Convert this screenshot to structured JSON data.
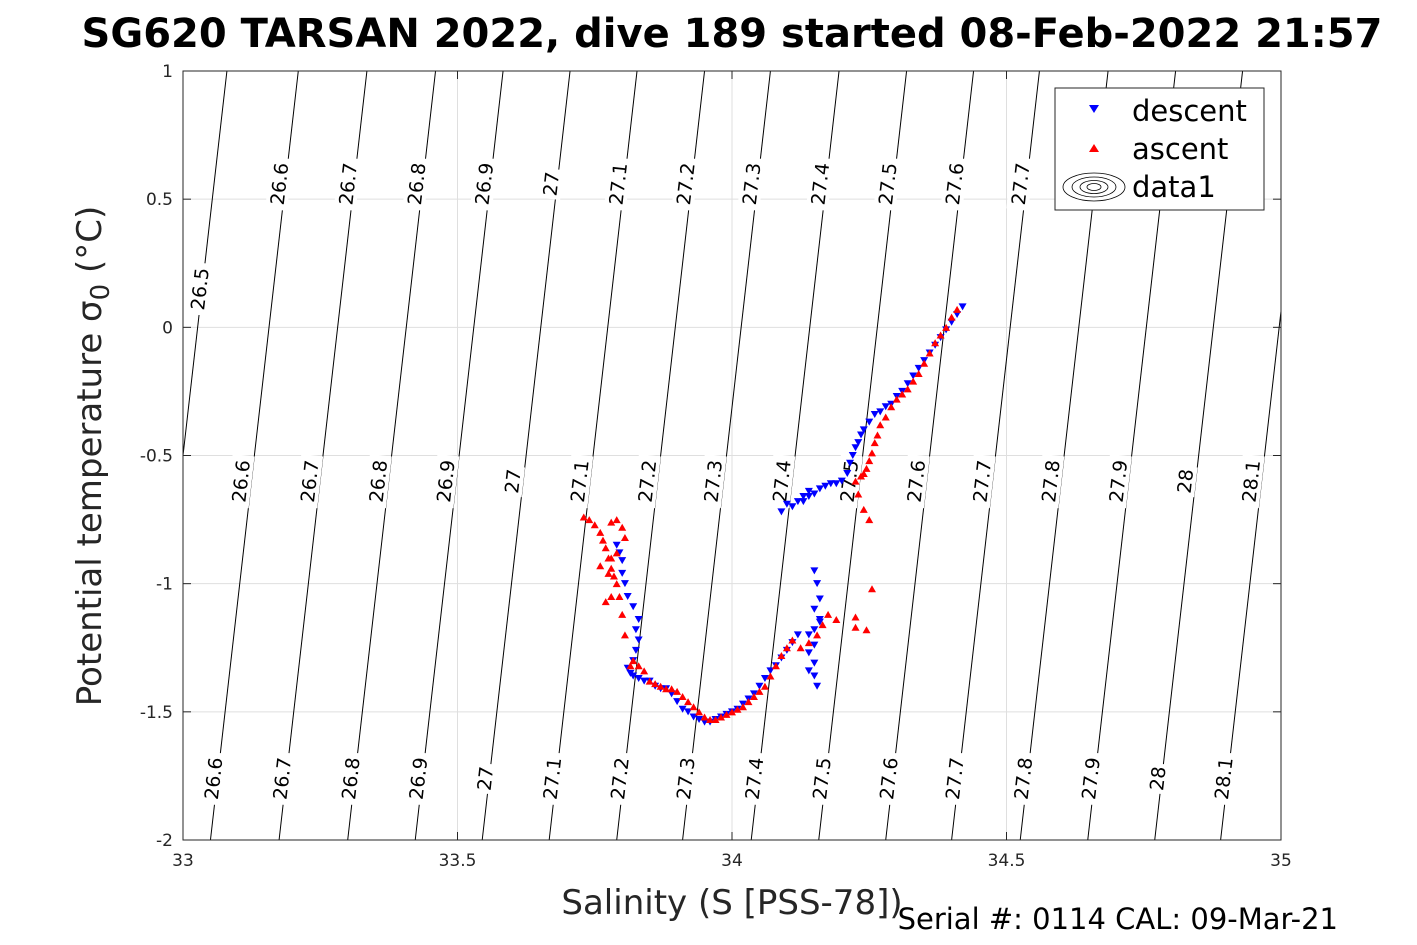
{
  "chart_data": {
    "type": "scatter",
    "title": "SG620 TARSAN 2022, dive 189 started 08-Feb-2022 21:57",
    "xlabel": "Salinity (S [PSS-78])",
    "ylabel_main": "Potential temperature ",
    "ylabel_sigma": "σ",
    "ylabel_sub": "0",
    "ylabel_units": " (°C)",
    "footer": "Serial #: 0114  CAL: 09-Mar-21",
    "xlim": [
      33,
      35
    ],
    "ylim": [
      -2,
      1
    ],
    "xticks": [
      33,
      33.5,
      34,
      34.5,
      35
    ],
    "xtick_labels": [
      "33",
      "33.5",
      "34",
      "34.5",
      "35"
    ],
    "yticks": [
      -2,
      -1.5,
      -1,
      -0.5,
      0,
      0.5,
      1
    ],
    "ytick_labels": [
      "-2",
      "-1.5",
      "-1",
      "-0.5",
      "0",
      "0.5",
      "1"
    ],
    "grid": true,
    "legend_position": "top-right",
    "legend": [
      {
        "label": "descent",
        "marker": "triangle-down",
        "color": "#0000ff"
      },
      {
        "label": "ascent",
        "marker": "triangle-up",
        "color": "#ff0000"
      },
      {
        "label": "data1",
        "marker": "contour",
        "color": "#000000"
      }
    ],
    "isopycnals": [
      {
        "level": "26.5",
        "x_bottom": 32.92,
        "x_top": 33.08,
        "labels": [
          {
            "x": 33.03,
            "y": 0.15
          }
        ]
      },
      {
        "level": "26.6",
        "x_bottom": 33.05,
        "x_top": 33.21,
        "labels": [
          {
            "x": 33.055,
            "y": -1.76
          },
          {
            "x": 33.105,
            "y": -0.6
          },
          {
            "x": 33.175,
            "y": 0.56
          }
        ]
      },
      {
        "level": "26.7",
        "x_bottom": 33.175,
        "x_top": 33.335,
        "labels": [
          {
            "x": 33.18,
            "y": -1.76
          },
          {
            "x": 33.23,
            "y": -0.6
          },
          {
            "x": 33.3,
            "y": 0.56
          }
        ]
      },
      {
        "level": "26.8",
        "x_bottom": 33.3,
        "x_top": 33.46,
        "labels": [
          {
            "x": 33.305,
            "y": -1.76
          },
          {
            "x": 33.355,
            "y": -0.6
          },
          {
            "x": 33.425,
            "y": 0.56
          }
        ]
      },
      {
        "level": "26.9",
        "x_bottom": 33.423,
        "x_top": 33.583,
        "labels": [
          {
            "x": 33.428,
            "y": -1.76
          },
          {
            "x": 33.478,
            "y": -0.6
          },
          {
            "x": 33.548,
            "y": 0.56
          }
        ]
      },
      {
        "level": "27",
        "x_bottom": 33.545,
        "x_top": 33.705,
        "labels": [
          {
            "x": 33.55,
            "y": -1.76
          },
          {
            "x": 33.6,
            "y": -0.6
          },
          {
            "x": 33.67,
            "y": 0.56
          }
        ]
      },
      {
        "level": "27.1",
        "x_bottom": 33.667,
        "x_top": 33.827,
        "labels": [
          {
            "x": 33.672,
            "y": -1.76
          },
          {
            "x": 33.722,
            "y": -0.6
          },
          {
            "x": 33.792,
            "y": 0.56
          }
        ]
      },
      {
        "level": "27.2",
        "x_bottom": 33.79,
        "x_top": 33.95,
        "labels": [
          {
            "x": 33.795,
            "y": -1.76
          },
          {
            "x": 33.845,
            "y": -0.6
          },
          {
            "x": 33.915,
            "y": 0.56
          }
        ]
      },
      {
        "level": "27.3",
        "x_bottom": 33.91,
        "x_top": 34.07,
        "labels": [
          {
            "x": 33.915,
            "y": -1.76
          },
          {
            "x": 33.965,
            "y": -0.6
          },
          {
            "x": 34.035,
            "y": 0.56
          }
        ]
      },
      {
        "level": "27.4",
        "x_bottom": 34.035,
        "x_top": 34.195,
        "labels": [
          {
            "x": 34.04,
            "y": -1.76
          },
          {
            "x": 34.09,
            "y": -0.6
          },
          {
            "x": 34.16,
            "y": 0.56
          }
        ]
      },
      {
        "level": "27.5",
        "x_bottom": 34.158,
        "x_top": 34.318,
        "labels": [
          {
            "x": 34.163,
            "y": -1.76
          },
          {
            "x": 34.213,
            "y": -0.6
          },
          {
            "x": 34.283,
            "y": 0.56
          }
        ]
      },
      {
        "level": "27.6",
        "x_bottom": 34.28,
        "x_top": 34.44,
        "labels": [
          {
            "x": 34.285,
            "y": -1.76
          },
          {
            "x": 34.335,
            "y": -0.6
          },
          {
            "x": 34.405,
            "y": 0.56
          }
        ]
      },
      {
        "level": "27.7",
        "x_bottom": 34.4,
        "x_top": 34.56,
        "labels": [
          {
            "x": 34.405,
            "y": -1.76
          },
          {
            "x": 34.455,
            "y": -0.6
          },
          {
            "x": 34.525,
            "y": 0.56
          }
        ]
      },
      {
        "level": "27.8",
        "x_bottom": 34.525,
        "x_top": 34.685,
        "labels": [
          {
            "x": 34.53,
            "y": -1.76
          },
          {
            "x": 34.58,
            "y": -0.6
          }
        ]
      },
      {
        "level": "27.9",
        "x_bottom": 34.648,
        "x_top": 34.808,
        "labels": [
          {
            "x": 34.653,
            "y": -1.76
          },
          {
            "x": 34.703,
            "y": -0.6
          }
        ]
      },
      {
        "level": "28",
        "x_bottom": 34.77,
        "x_top": 34.93,
        "labels": [
          {
            "x": 34.775,
            "y": -1.76
          },
          {
            "x": 34.825,
            "y": -0.6
          }
        ]
      },
      {
        "level": "28.1",
        "x_bottom": 34.89,
        "x_top": 35.05,
        "labels": [
          {
            "x": 34.895,
            "y": -1.76
          },
          {
            "x": 34.945,
            "y": -0.6
          }
        ]
      }
    ],
    "series": [
      {
        "name": "descent",
        "marker": "triangle-down",
        "color": "#0000ff",
        "points": [
          [
            34.42,
            0.08
          ],
          [
            34.41,
            0.05
          ],
          [
            34.4,
            0.02
          ],
          [
            34.39,
            -0.01
          ],
          [
            34.38,
            -0.04
          ],
          [
            34.37,
            -0.07
          ],
          [
            34.36,
            -0.1
          ],
          [
            34.35,
            -0.13
          ],
          [
            34.34,
            -0.16
          ],
          [
            34.33,
            -0.19
          ],
          [
            34.32,
            -0.22
          ],
          [
            34.31,
            -0.25
          ],
          [
            34.3,
            -0.27
          ],
          [
            34.29,
            -0.3
          ],
          [
            34.28,
            -0.31
          ],
          [
            34.27,
            -0.33
          ],
          [
            34.26,
            -0.34
          ],
          [
            34.25,
            -0.37
          ],
          [
            34.24,
            -0.4
          ],
          [
            34.235,
            -0.42
          ],
          [
            34.23,
            -0.45
          ],
          [
            34.225,
            -0.47
          ],
          [
            34.22,
            -0.5
          ],
          [
            34.215,
            -0.53
          ],
          [
            34.21,
            -0.57
          ],
          [
            34.2,
            -0.6
          ],
          [
            34.19,
            -0.61
          ],
          [
            34.18,
            -0.61
          ],
          [
            34.17,
            -0.62
          ],
          [
            34.16,
            -0.63
          ],
          [
            34.15,
            -0.65
          ],
          [
            34.14,
            -0.66
          ],
          [
            34.13,
            -0.68
          ],
          [
            34.14,
            -0.64
          ],
          [
            34.13,
            -0.66
          ],
          [
            34.12,
            -0.68
          ],
          [
            34.11,
            -0.7
          ],
          [
            34.1,
            -0.69
          ],
          [
            34.09,
            -0.72
          ],
          [
            34.15,
            -0.95
          ],
          [
            34.155,
            -1.0
          ],
          [
            34.16,
            -1.06
          ],
          [
            34.15,
            -1.1
          ],
          [
            34.16,
            -1.14
          ],
          [
            34.15,
            -1.18
          ],
          [
            34.14,
            -1.2
          ],
          [
            34.15,
            -1.24
          ],
          [
            34.14,
            -1.27
          ],
          [
            34.15,
            -1.31
          ],
          [
            34.14,
            -1.34
          ],
          [
            34.15,
            -1.36
          ],
          [
            34.16,
            -1.15
          ],
          [
            34.155,
            -1.4
          ],
          [
            34.12,
            -1.2
          ],
          [
            34.11,
            -1.23
          ],
          [
            34.1,
            -1.26
          ],
          [
            34.09,
            -1.29
          ],
          [
            34.08,
            -1.32
          ],
          [
            34.07,
            -1.34
          ],
          [
            34.06,
            -1.37
          ],
          [
            34.05,
            -1.4
          ],
          [
            34.04,
            -1.43
          ],
          [
            34.03,
            -1.45
          ],
          [
            34.02,
            -1.47
          ],
          [
            34.01,
            -1.49
          ],
          [
            34.0,
            -1.5
          ],
          [
            33.99,
            -1.51
          ],
          [
            33.98,
            -1.52
          ],
          [
            33.97,
            -1.53
          ],
          [
            33.96,
            -1.54
          ],
          [
            33.95,
            -1.54
          ],
          [
            33.94,
            -1.53
          ],
          [
            33.93,
            -1.52
          ],
          [
            33.92,
            -1.5
          ],
          [
            33.91,
            -1.49
          ],
          [
            33.9,
            -1.46
          ],
          [
            33.89,
            -1.43
          ],
          [
            33.88,
            -1.41
          ],
          [
            33.87,
            -1.41
          ],
          [
            33.86,
            -1.4
          ],
          [
            33.85,
            -1.38
          ],
          [
            33.84,
            -1.38
          ],
          [
            33.83,
            -1.37
          ],
          [
            33.82,
            -1.36
          ],
          [
            33.815,
            -1.35
          ],
          [
            33.81,
            -1.33
          ],
          [
            33.82,
            -1.3
          ],
          [
            33.825,
            -1.26
          ],
          [
            33.83,
            -1.22
          ],
          [
            33.825,
            -1.18
          ],
          [
            33.83,
            -1.14
          ],
          [
            33.82,
            -1.09
          ],
          [
            33.81,
            -1.05
          ],
          [
            33.805,
            -1.0
          ],
          [
            33.8,
            -0.96
          ],
          [
            33.8,
            -0.91
          ],
          [
            33.795,
            -0.88
          ],
          [
            33.79,
            -0.85
          ]
        ]
      },
      {
        "name": "ascent",
        "marker": "triangle-up",
        "color": "#ff0000",
        "points": [
          [
            34.41,
            0.07
          ],
          [
            34.4,
            0.04
          ],
          [
            34.39,
            0.0
          ],
          [
            34.38,
            -0.03
          ],
          [
            34.37,
            -0.06
          ],
          [
            34.36,
            -0.1
          ],
          [
            34.35,
            -0.14
          ],
          [
            34.34,
            -0.18
          ],
          [
            34.33,
            -0.21
          ],
          [
            34.32,
            -0.24
          ],
          [
            34.31,
            -0.26
          ],
          [
            34.3,
            -0.28
          ],
          [
            34.29,
            -0.31
          ],
          [
            34.28,
            -0.35
          ],
          [
            34.27,
            -0.38
          ],
          [
            34.265,
            -0.42
          ],
          [
            34.26,
            -0.45
          ],
          [
            34.255,
            -0.49
          ],
          [
            34.25,
            -0.52
          ],
          [
            34.245,
            -0.55
          ],
          [
            34.24,
            -0.57
          ],
          [
            34.235,
            -0.58
          ],
          [
            34.225,
            -0.6
          ],
          [
            34.23,
            -0.65
          ],
          [
            34.24,
            -0.71
          ],
          [
            34.25,
            -0.75
          ],
          [
            34.255,
            -1.02
          ],
          [
            34.225,
            -1.17
          ],
          [
            34.245,
            -1.18
          ],
          [
            34.225,
            -1.13
          ],
          [
            34.19,
            -1.14
          ],
          [
            34.175,
            -1.12
          ],
          [
            34.165,
            -1.16
          ],
          [
            34.155,
            -1.2
          ],
          [
            34.14,
            -1.23
          ],
          [
            34.125,
            -1.25
          ],
          [
            34.11,
            -1.22
          ],
          [
            34.1,
            -1.25
          ],
          [
            34.09,
            -1.28
          ],
          [
            34.08,
            -1.32
          ],
          [
            34.07,
            -1.36
          ],
          [
            34.06,
            -1.4
          ],
          [
            34.05,
            -1.42
          ],
          [
            34.04,
            -1.44
          ],
          [
            34.03,
            -1.46
          ],
          [
            34.02,
            -1.48
          ],
          [
            34.01,
            -1.49
          ],
          [
            34.0,
            -1.5
          ],
          [
            33.99,
            -1.51
          ],
          [
            33.98,
            -1.52
          ],
          [
            33.97,
            -1.53
          ],
          [
            33.96,
            -1.53
          ],
          [
            33.95,
            -1.52
          ],
          [
            33.94,
            -1.5
          ],
          [
            33.93,
            -1.48
          ],
          [
            33.92,
            -1.46
          ],
          [
            33.91,
            -1.44
          ],
          [
            33.9,
            -1.42
          ],
          [
            33.89,
            -1.41
          ],
          [
            33.88,
            -1.41
          ],
          [
            33.87,
            -1.4
          ],
          [
            33.86,
            -1.39
          ],
          [
            33.85,
            -1.38
          ],
          [
            33.84,
            -1.34
          ],
          [
            33.83,
            -1.32
          ],
          [
            33.82,
            -1.3
          ],
          [
            33.815,
            -1.32
          ],
          [
            33.805,
            -1.2
          ],
          [
            33.8,
            -1.12
          ],
          [
            33.795,
            -1.05
          ],
          [
            33.79,
            -1.0
          ],
          [
            33.785,
            -0.97
          ],
          [
            33.78,
            -0.94
          ],
          [
            33.775,
            -0.9
          ],
          [
            33.77,
            -0.86
          ],
          [
            33.765,
            -0.83
          ],
          [
            33.76,
            -0.8
          ],
          [
            33.75,
            -0.77
          ],
          [
            33.74,
            -0.75
          ],
          [
            33.73,
            -0.74
          ],
          [
            33.78,
            -0.76
          ],
          [
            33.79,
            -0.75
          ],
          [
            33.8,
            -0.78
          ],
          [
            33.805,
            -0.82
          ],
          [
            33.79,
            -0.88
          ],
          [
            33.78,
            -0.9
          ],
          [
            33.775,
            -0.96
          ],
          [
            33.76,
            -0.93
          ],
          [
            33.77,
            -1.07
          ],
          [
            33.78,
            -1.05
          ]
        ]
      }
    ]
  }
}
